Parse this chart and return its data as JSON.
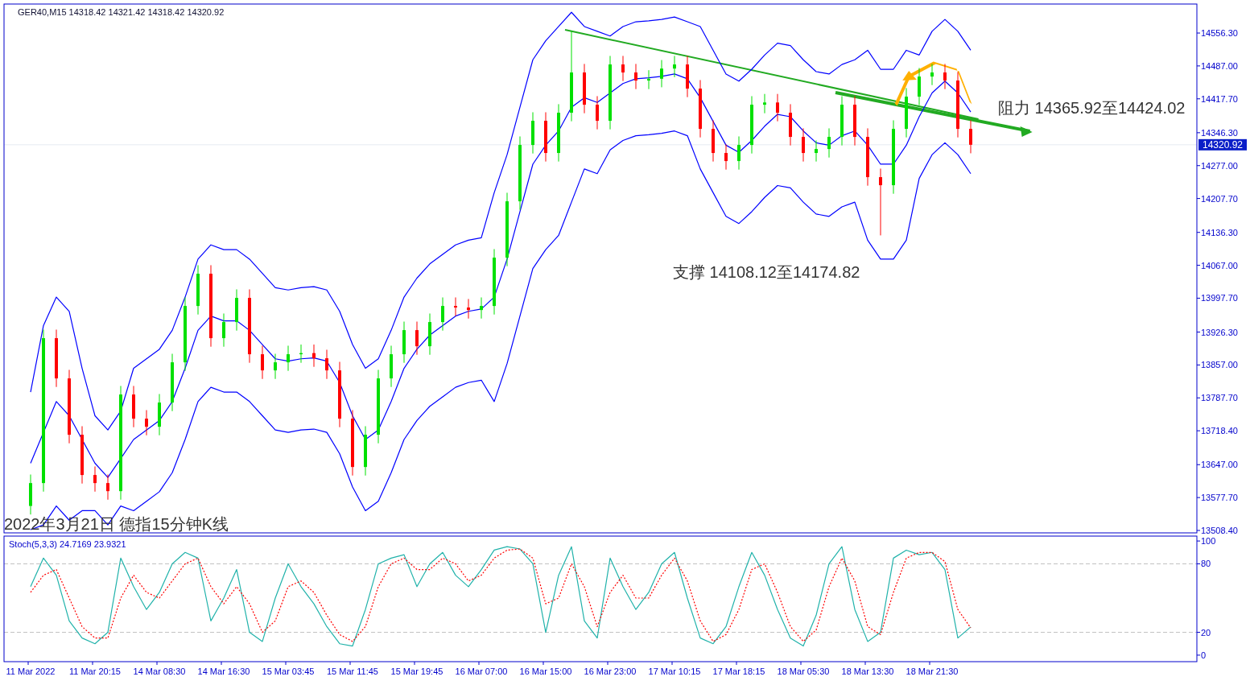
{
  "chart_data": [
    {
      "type": "candlestick",
      "title": "GER40,M15 14318.42 14321.42 14318.42 14320.92",
      "categories": [
        null,
        null,
        null,
        null,
        null,
        null,
        null,
        null,
        null,
        null,
        null,
        null,
        null,
        null,
        null,
        null,
        null,
        null,
        null,
        null,
        null,
        null,
        null,
        null,
        null,
        null,
        null,
        null,
        null,
        null,
        null,
        null,
        null,
        null,
        null,
        null,
        null,
        null,
        null,
        null,
        null,
        null,
        null,
        null,
        null,
        null,
        null,
        null,
        null,
        null,
        null,
        null,
        null,
        null,
        null,
        null,
        null,
        null,
        null,
        null,
        null,
        null,
        null,
        null,
        null,
        null,
        null,
        null,
        null,
        null,
        null,
        null,
        null,
        null
      ],
      "ohlc": [
        [
          13560.0,
          13626.2,
          13542.0,
          13608.2
        ],
        [
          13608.2,
          13931.5,
          13590.2,
          13913.5
        ],
        [
          13913.5,
          13931.5,
          13810.7,
          13828.7
        ],
        [
          13828.7,
          13846.7,
          13692.0,
          13710.0
        ],
        [
          13710.0,
          13728.0,
          13607.2,
          13625.2
        ],
        [
          13625.2,
          13643.2,
          13590.2,
          13608.2
        ],
        [
          13608.2,
          13626.2,
          13573.2,
          13591.2
        ],
        [
          13591.2,
          13812.8,
          13573.2,
          13794.8
        ],
        [
          13794.8,
          13812.8,
          13725.9,
          13743.9
        ],
        [
          13743.9,
          13761.9,
          13708.9,
          13726.9
        ],
        [
          13726.9,
          13795.8,
          13708.9,
          13777.8
        ],
        [
          13777.8,
          13880.6,
          13759.8,
          13862.6
        ],
        [
          13862.6,
          13999.3,
          13844.6,
          13981.3
        ],
        [
          13981.3,
          14067.2,
          13963.3,
          14049.2
        ],
        [
          14049.2,
          14067.2,
          13895.5,
          13913.5
        ],
        [
          13913.5,
          13965.4,
          13895.5,
          13947.4
        ],
        [
          13947.4,
          14016.3,
          13929.4,
          13998.3
        ],
        [
          13998.3,
          14016.3,
          13861.6,
          13879.6
        ],
        [
          13879.6,
          13897.6,
          13827.6,
          13845.6
        ],
        [
          13845.6,
          13880.6,
          13827.6,
          13862.6
        ],
        [
          13862.6,
          13897.6,
          13844.6,
          13879.6
        ],
        [
          13879.6,
          13900.0,
          13861.6,
          13882.0
        ],
        [
          13882.0,
          13900.0,
          13853.1,
          13871.1
        ],
        [
          13871.1,
          13889.1,
          13827.6,
          13845.6
        ],
        [
          13845.6,
          13863.6,
          13725.9,
          13743.9
        ],
        [
          13743.9,
          13761.9,
          13624.1,
          13642.1
        ],
        [
          13642.1,
          13728.0,
          13624.1,
          13710.0
        ],
        [
          13710.0,
          13846.7,
          13692.0,
          13828.7
        ],
        [
          13828.7,
          13897.6,
          13810.7,
          13879.6
        ],
        [
          13879.6,
          13948.4,
          13861.6,
          13930.4
        ],
        [
          13930.4,
          13948.4,
          13878.5,
          13896.5
        ],
        [
          13896.5,
          13965.4,
          13878.5,
          13947.4
        ],
        [
          13947.4,
          13999.3,
          13929.4,
          13981.3
        ],
        [
          13981.3,
          13999.3,
          13960.0,
          13978.0
        ],
        [
          13978.0,
          13996.0,
          13954.8,
          13972.8
        ],
        [
          13972.8,
          13999.3,
          13954.8,
          13981.3
        ],
        [
          13981.3,
          14101.1,
          13963.3,
          14083.1
        ],
        [
          14083.1,
          14219.8,
          14065.1,
          14201.8
        ],
        [
          14201.8,
          14338.5,
          14183.8,
          14320.5
        ],
        [
          14320.5,
          14389.4,
          14302.5,
          14371.4
        ],
        [
          14371.4,
          14389.4,
          14285.6,
          14303.6
        ],
        [
          14303.6,
          14406.4,
          14285.6,
          14388.4
        ],
        [
          14388.4,
          14560.0,
          14370.4,
          14473.2
        ],
        [
          14473.2,
          14491.2,
          14387.3,
          14405.3
        ],
        [
          14405.3,
          14423.3,
          14353.4,
          14371.4
        ],
        [
          14371.4,
          14508.1,
          14353.4,
          14490.1
        ],
        [
          14490.1,
          14508.1,
          14455.2,
          14473.2
        ],
        [
          14473.2,
          14491.2,
          14438.2,
          14456.2
        ],
        [
          14456.2,
          14478.0,
          14438.2,
          14460.0
        ],
        [
          14460.0,
          14499.4,
          14442.0,
          14481.4
        ],
        [
          14481.4,
          14508.1,
          14463.4,
          14490.1
        ],
        [
          14490.1,
          14508.1,
          14421.2,
          14439.2
        ],
        [
          14439.2,
          14457.2,
          14336.4,
          14354.4
        ],
        [
          14354.4,
          14372.4,
          14285.6,
          14303.6
        ],
        [
          14303.6,
          14321.6,
          14268.6,
          14286.6
        ],
        [
          14286.6,
          14338.5,
          14268.6,
          14320.5
        ],
        [
          14320.5,
          14423.3,
          14302.5,
          14405.3
        ],
        [
          14405.3,
          14428.0,
          14387.3,
          14410.0
        ],
        [
          14410.0,
          14428.0,
          14370.4,
          14388.4
        ],
        [
          14388.4,
          14406.4,
          14319.5,
          14337.5
        ],
        [
          14337.5,
          14355.5,
          14285.6,
          14303.6
        ],
        [
          14303.6,
          14330.0,
          14285.6,
          14312.0
        ],
        [
          14312.0,
          14355.5,
          14294.0,
          14337.5
        ],
        [
          14337.5,
          14423.3,
          14319.5,
          14405.3
        ],
        [
          14405.3,
          14423.3,
          14319.5,
          14337.5
        ],
        [
          14337.5,
          14355.5,
          14234.7,
          14252.7
        ],
        [
          14252.7,
          14270.7,
          14130.0,
          14235.7
        ],
        [
          14235.7,
          14372.4,
          14217.7,
          14354.4
        ],
        [
          14354.4,
          14440.3,
          14336.4,
          14422.3
        ],
        [
          14422.3,
          14482.6,
          14404.3,
          14464.6
        ],
        [
          14464.6,
          14491.2,
          14446.6,
          14473.2
        ],
        [
          14473.2,
          14491.2,
          14438.2,
          14456.2
        ],
        [
          14456.2,
          14474.2,
          14336.4,
          14354.4
        ],
        [
          14354.4,
          14372.4,
          14302.9,
          14320.92
        ]
      ],
      "colors": [
        "#00e000",
        "#00e000",
        "#ff0000",
        "#ff0000",
        "#ff0000",
        "#ff0000",
        "#ff0000",
        "#00e000",
        "#ff0000",
        "#ff0000",
        "#00e000",
        "#00e000",
        "#00e000",
        "#00e000",
        "#ff0000",
        "#00e000",
        "#00e000",
        "#ff0000",
        "#ff0000",
        "#00e000",
        "#00e000",
        "#00e000",
        "#ff0000",
        "#ff0000",
        "#ff0000",
        "#ff0000",
        "#00e000",
        "#00e000",
        "#00e000",
        "#00e000",
        "#ff0000",
        "#00e000",
        "#00e000",
        "#ff0000",
        "#ff0000",
        "#00e000",
        "#00e000",
        "#00e000",
        "#00e000",
        "#00e000",
        "#ff0000",
        "#00e000",
        "#00e000",
        "#ff0000",
        "#ff0000",
        "#00e000",
        "#ff0000",
        "#ff0000",
        "#00e000",
        "#00e000",
        "#00e000",
        "#ff0000",
        "#ff0000",
        "#ff0000",
        "#ff0000",
        "#00e000",
        "#00e000",
        "#00e000",
        "#ff0000",
        "#ff0000",
        "#ff0000",
        "#00e000",
        "#00e000",
        "#00e000",
        "#ff0000",
        "#ff0000",
        "#ff0000",
        "#00e000",
        "#00e000",
        "#00e000",
        "#00e000",
        "#ff0000",
        "#ff0000",
        "#ff0000"
      ],
      "series": [
        {
          "type": "line",
          "color": "#0000ff",
          "values": [
            13800,
            13940,
            14000,
            13970,
            13850,
            13750,
            13720,
            13760,
            13850,
            13870,
            13890,
            13930,
            14000,
            14080,
            14110,
            14100,
            14100,
            14080,
            14050,
            14020,
            14015,
            14020,
            14022,
            14015,
            13970,
            13900,
            13850,
            13870,
            13930,
            14000,
            14040,
            14070,
            14090,
            14110,
            14120,
            14125,
            14220,
            14300,
            14400,
            14500,
            14540,
            14570,
            14600,
            14570,
            14560,
            14550,
            14570,
            14580,
            14582,
            14585,
            14590,
            14580,
            14570,
            14520,
            14470,
            14455,
            14480,
            14510,
            14535,
            14530,
            14500,
            14475,
            14470,
            14490,
            14500,
            14520,
            14480,
            14480,
            14520,
            14510,
            14560,
            14585,
            14560,
            14520
          ]
        },
        {
          "type": "line",
          "color": "#0000ff",
          "values": [
            13650,
            null,
            13780,
            13750,
            13700,
            13650,
            13620,
            13660,
            13700,
            13720,
            13740,
            13780,
            13850,
            13930,
            13960,
            13950,
            13950,
            13930,
            13900,
            13870,
            13865,
            13870,
            13872,
            13865,
            13820,
            13750,
            13700,
            13720,
            13780,
            13850,
            13890,
            13920,
            13940,
            13960,
            13970,
            13975,
            14000,
            14080,
            14180,
            14280,
            14320,
            14350,
            14400,
            14420,
            14410,
            14430,
            14450,
            14460,
            14462,
            14465,
            14470,
            14460,
            14420,
            14370,
            14320,
            14305,
            14330,
            14360,
            14385,
            14380,
            14350,
            14325,
            14320,
            14340,
            14350,
            14320,
            14280,
            14280,
            14320,
            14380,
            14430,
            14455,
            14430,
            14390
          ]
        },
        {
          "type": "line",
          "color": "#0000ff",
          "values": [
            13510,
            13520,
            13560,
            13530,
            13550,
            13550,
            13520,
            13560,
            13550,
            13570,
            13590,
            13630,
            13700,
            13780,
            13810,
            13800,
            13800,
            13780,
            13750,
            13720,
            13715,
            13720,
            13722,
            13715,
            13670,
            13600,
            13550,
            13570,
            13630,
            13700,
            13740,
            13770,
            13790,
            13810,
            13820,
            13825,
            13780,
            13860,
            13960,
            14060,
            14100,
            14130,
            14200,
            14270,
            14260,
            14310,
            14330,
            14340,
            14342,
            14345,
            14350,
            14340,
            14270,
            14220,
            14170,
            14155,
            14180,
            14210,
            14235,
            14230,
            14200,
            14175,
            14170,
            14190,
            14200,
            14120,
            14080,
            14080,
            14120,
            14250,
            14300,
            14325,
            14300,
            14260
          ]
        }
      ],
      "ylim": [
        13503.3,
        14617.4
      ],
      "yticks": [
        {
          "value": 14556.3,
          "label": "14556.30"
        },
        {
          "value": 14487.0,
          "label": "14487.00"
        },
        {
          "value": 14417.7,
          "label": "14417.70"
        },
        {
          "value": 14346.3,
          "label": "14346.30"
        },
        {
          "value": 14277.0,
          "label": "14277.00"
        },
        {
          "value": 14207.7,
          "label": "14207.70"
        },
        {
          "value": 14136.3,
          "label": "14136.30"
        },
        {
          "value": 14067.0,
          "label": "14067.00"
        },
        {
          "value": 13997.7,
          "label": "13997.70"
        },
        {
          "value": 13926.3,
          "label": "13926.30"
        },
        {
          "value": 13857.0,
          "label": "13857.00"
        },
        {
          "value": 13787.7,
          "label": "13787.70"
        },
        {
          "value": 13718.4,
          "label": "13718.40"
        },
        {
          "value": 13647.0,
          "label": "13647.00"
        },
        {
          "value": 13577.7,
          "label": "13577.70"
        },
        {
          "value": 13508.4,
          "label": "13508.40"
        }
      ],
      "ref_lines": [
        {
          "axis": "y",
          "value": 14320.92,
          "label": "14320.92",
          "color": "#e6eaf2"
        }
      ],
      "annotations": [
        "阻力 14365.92至14424.02",
        "支撑 14108.12至14174.82",
        "2022年3月21日 德指15分钟K线"
      ],
      "tick_labels": "y"
    },
    {
      "type": "line",
      "title": "Stoch(5,3,3) 24.7169 23.9321",
      "categories": [
        "11 Mar 2022",
        null,
        null,
        null,
        null,
        "11 Mar 20:15",
        null,
        null,
        null,
        null,
        "14 Mar 08:30",
        null,
        null,
        null,
        null,
        "14 Mar 16:30",
        null,
        null,
        null,
        null,
        "15 Mar 03:45",
        null,
        null,
        null,
        null,
        "15 Mar 11:45",
        null,
        null,
        null,
        null,
        "15 Mar 19:45",
        null,
        null,
        null,
        null,
        "16 Mar 07:00",
        null,
        null,
        null,
        null,
        "16 Mar 15:00",
        null,
        null,
        null,
        null,
        "16 Mar 23:00",
        null,
        null,
        null,
        null,
        "17 Mar 10:15",
        null,
        null,
        null,
        null,
        "17 Mar 18:15",
        null,
        null,
        null,
        null,
        "18 Mar 05:30",
        null,
        null,
        null,
        null,
        "18 Mar 13:30",
        null,
        null,
        null,
        null,
        "18 Mar 21:30",
        null,
        null,
        null
      ],
      "series": [
        {
          "color": "#20b2aa",
          "line_style": "solid",
          "values": [
            60,
            85,
            70,
            30,
            15,
            10,
            20,
            85,
            60,
            40,
            55,
            80,
            90,
            85,
            30,
            50,
            75,
            20,
            12,
            50,
            80,
            60,
            45,
            25,
            10,
            8,
            40,
            80,
            85,
            88,
            60,
            80,
            90,
            70,
            60,
            75,
            92,
            95,
            93,
            80,
            20,
            70,
            95,
            30,
            15,
            85,
            60,
            40,
            55,
            80,
            90,
            50,
            15,
            10,
            25,
            60,
            90,
            70,
            40,
            15,
            8,
            35,
            80,
            95,
            40,
            12,
            20,
            85,
            92,
            88,
            90,
            75,
            15,
            24.7
          ]
        },
        {
          "color": "#ff0000",
          "line_style": "dotted",
          "values": [
            55,
            70,
            75,
            50,
            25,
            15,
            15,
            50,
            70,
            55,
            50,
            65,
            80,
            85,
            60,
            45,
            60,
            45,
            20,
            30,
            60,
            65,
            55,
            35,
            18,
            12,
            25,
            60,
            80,
            85,
            75,
            75,
            85,
            80,
            65,
            70,
            85,
            92,
            93,
            85,
            45,
            50,
            80,
            60,
            25,
            55,
            70,
            50,
            50,
            70,
            85,
            65,
            30,
            12,
            18,
            40,
            75,
            80,
            55,
            25,
            12,
            22,
            60,
            85,
            65,
            25,
            18,
            55,
            85,
            90,
            90,
            82,
            40,
            23.9
          ]
        }
      ],
      "ylim": [
        -5.7,
        104.3
      ],
      "yticks": [
        100,
        80,
        20,
        0
      ],
      "ref_lines": [
        {
          "axis": "y",
          "value": 80,
          "color": "#c0c0c0",
          "line_style": "dashed"
        },
        {
          "axis": "y",
          "value": 20,
          "color": "#c0c0c0",
          "line_style": "dashed"
        }
      ]
    }
  ]
}
